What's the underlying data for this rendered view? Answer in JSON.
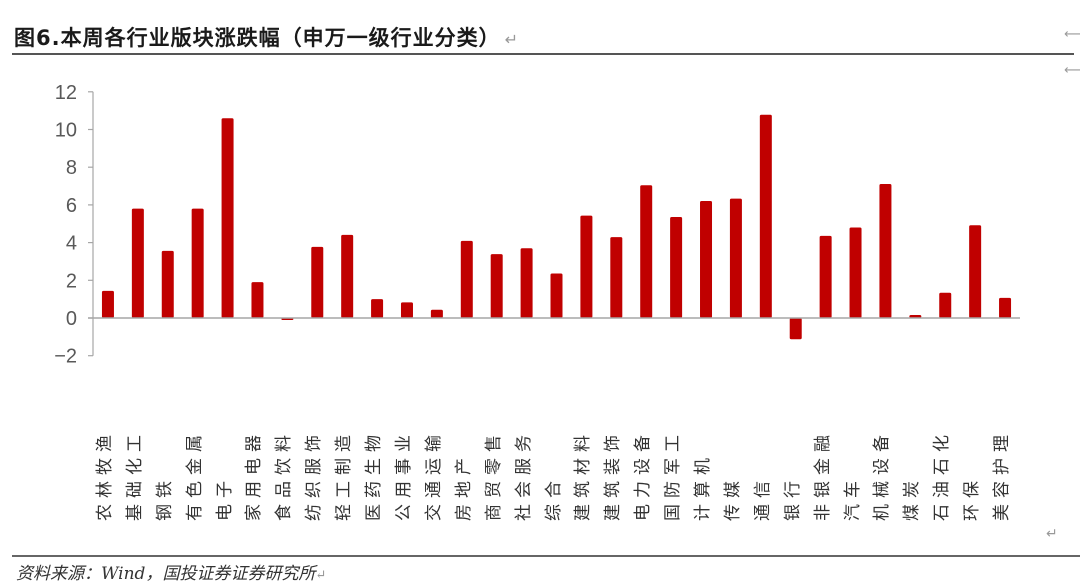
{
  "header": {
    "title": "图6.本周各行业版块涨跌幅（申万一级行业分类）",
    "return_mark": "↵"
  },
  "footer": {
    "source": "资料来源：Wind，国投证券证券研究所",
    "return_mark": "↵"
  },
  "colors": {
    "bar": "#C00000",
    "axis": "#A6A6A6",
    "tick_label": "#595959"
  },
  "chart_data": {
    "type": "bar",
    "title": "本周各行业版块涨跌幅（申万一级行业分类）",
    "xlabel": "",
    "ylabel": "",
    "ylim": [
      -2,
      12
    ],
    "yticks": [
      12,
      10,
      8,
      6,
      4,
      2,
      0,
      -2
    ],
    "ytick_labels": [
      "12",
      "10",
      "8",
      "6",
      "4",
      "2",
      "0",
      "−2"
    ],
    "grid": false,
    "legend": null,
    "categories": [
      "农林牧渔",
      "基础化工",
      "钢铁",
      "有色金属",
      "电子",
      "家用电器",
      "食品饮料",
      "纺织服饰",
      "轻工制造",
      "医药生物",
      "公用事业",
      "交通运输",
      "房地产",
      "商贸零售",
      "社会服务",
      "综合",
      "建筑材料",
      "建筑装饰",
      "电力设备",
      "国防军工",
      "计算机",
      "传媒",
      "通信",
      "银行",
      "非银金融",
      "汽车",
      "机械设备",
      "煤炭",
      "石油石化",
      "环保",
      "美容护理"
    ],
    "values": [
      1.44,
      5.8,
      3.56,
      5.8,
      10.6,
      1.9,
      -0.1,
      3.77,
      4.41,
      1.0,
      0.83,
      0.44,
      4.09,
      3.39,
      3.7,
      2.36,
      5.43,
      4.29,
      7.04,
      5.36,
      6.21,
      6.33,
      10.78,
      -1.13,
      4.36,
      4.8,
      7.11,
      0.16,
      1.34,
      4.92,
      1.07
    ]
  }
}
